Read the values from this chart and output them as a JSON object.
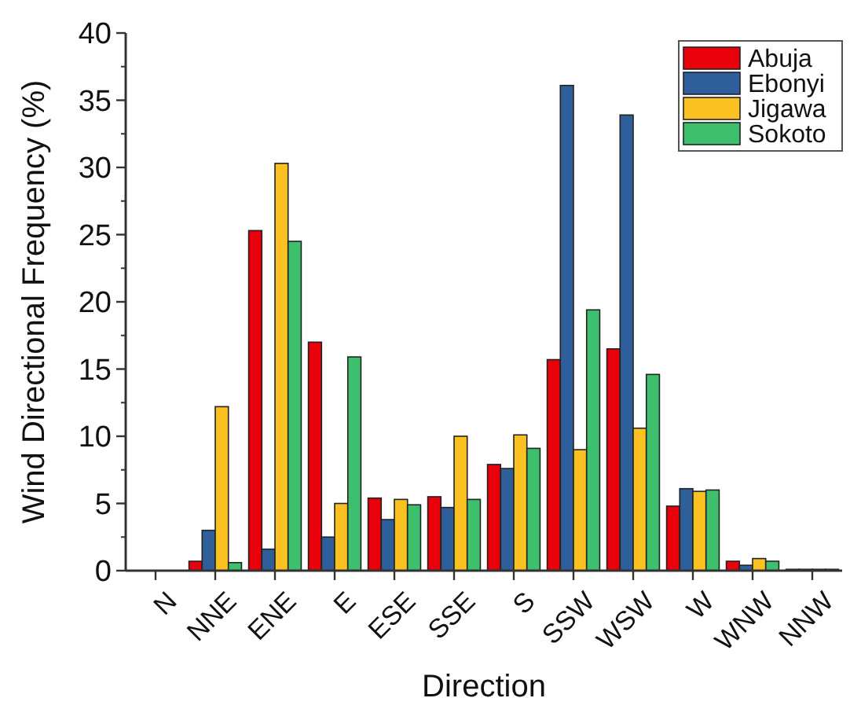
{
  "chart_data": {
    "type": "bar",
    "xlabel": "Direction",
    "ylabel": "Wind Directional Frequency (%)",
    "categories": [
      "N",
      "NNE",
      "ENE",
      "E",
      "ESE",
      "SSE",
      "S",
      "SSW",
      "WSW",
      "W",
      "WNW",
      "NNW"
    ],
    "series": [
      {
        "name": "Abuja",
        "color": "#e8000b",
        "values": [
          0,
          0.7,
          25.3,
          17.0,
          5.4,
          5.5,
          7.9,
          15.7,
          16.5,
          4.8,
          0.7,
          0.1
        ]
      },
      {
        "name": "Ebonyi",
        "color": "#2f5f9a",
        "values": [
          0,
          3.0,
          1.6,
          2.5,
          3.8,
          4.7,
          7.6,
          36.1,
          33.9,
          6.1,
          0.4,
          0.1
        ]
      },
      {
        "name": "Jigawa",
        "color": "#fbc120",
        "values": [
          0,
          12.2,
          30.3,
          5.0,
          5.3,
          10.0,
          10.1,
          9.0,
          10.6,
          5.9,
          0.9,
          0.1
        ]
      },
      {
        "name": "Sokoto",
        "color": "#3dbf6e",
        "values": [
          0,
          0.6,
          24.5,
          15.9,
          4.9,
          5.3,
          9.1,
          19.4,
          14.6,
          6.0,
          0.7,
          0.1
        ]
      }
    ],
    "ylim": [
      0,
      40
    ],
    "yticks": [
      0,
      5,
      10,
      15,
      20,
      25,
      30,
      35,
      40
    ],
    "legend": "top right"
  }
}
